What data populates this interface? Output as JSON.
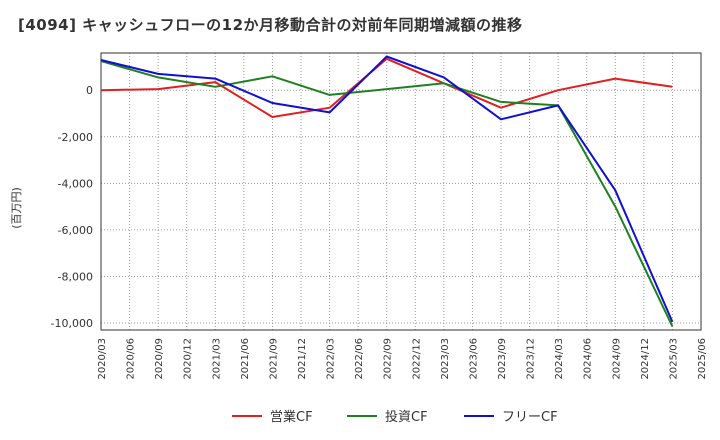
{
  "chart_data": {
    "type": "line",
    "title": "[4094]  キャッシュフローの12か月移動合計の対前年同期増減額の推移",
    "ylabel": "(百万円)",
    "ylim": [
      -10300,
      1600
    ],
    "yticks": [
      0,
      -2000,
      -4000,
      -6000,
      -8000,
      -10000
    ],
    "ytick_labels": [
      "0",
      "-2,000",
      "-4,000",
      "-6,000",
      "-8,000",
      "-10,000"
    ],
    "x": [
      "2020/03",
      "2020/06",
      "2020/09",
      "2020/12",
      "2021/03",
      "2021/06",
      "2021/09",
      "2021/12",
      "2022/03",
      "2022/06",
      "2022/09",
      "2022/12",
      "2023/03",
      "2023/06",
      "2023/09",
      "2023/12",
      "2024/03",
      "2024/06",
      "2024/09",
      "2024/12",
      "2025/03",
      "2025/06"
    ],
    "grid": true,
    "legend_position": "bottom",
    "series": [
      {
        "name": "営業CF",
        "color": "#e02020",
        "values": [
          0,
          null,
          50,
          null,
          350,
          null,
          -1150,
          null,
          -750,
          null,
          1350,
          null,
          300,
          null,
          -750,
          null,
          0,
          null,
          500,
          null,
          150,
          null
        ]
      },
      {
        "name": "投資CF",
        "color": "#208020",
        "values": [
          1250,
          null,
          550,
          null,
          150,
          null,
          600,
          null,
          -200,
          null,
          50,
          null,
          300,
          null,
          -500,
          null,
          -650,
          null,
          -5000,
          null,
          -10150,
          null
        ]
      },
      {
        "name": "フリーCF",
        "color": "#1010d0",
        "values": [
          1300,
          null,
          700,
          null,
          500,
          null,
          -550,
          null,
          -950,
          null,
          1450,
          null,
          550,
          null,
          -1250,
          null,
          -650,
          null,
          -4300,
          null,
          -9950,
          null
        ]
      }
    ]
  }
}
